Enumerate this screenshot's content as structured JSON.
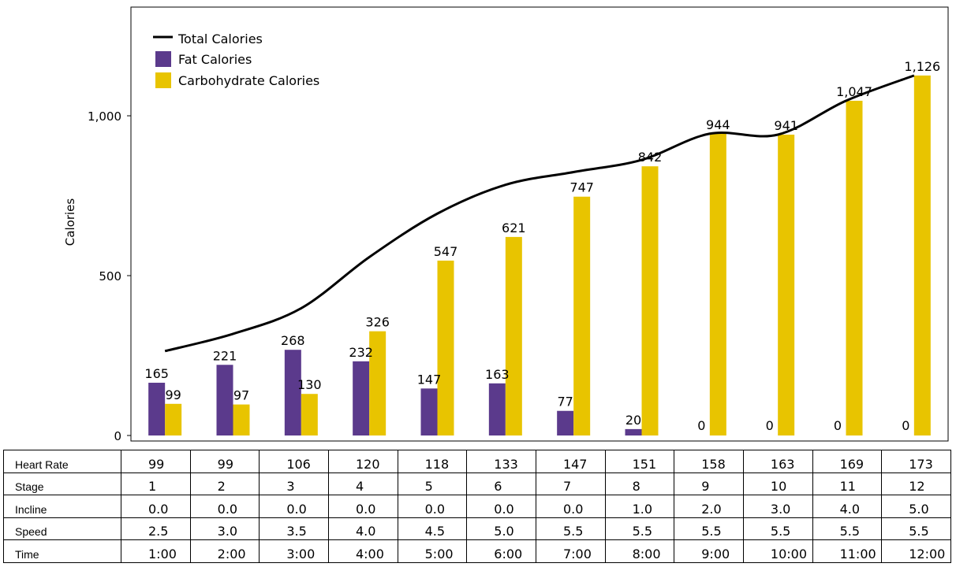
{
  "chart_data": {
    "type": "bar",
    "categories": [
      "1",
      "2",
      "3",
      "4",
      "5",
      "6",
      "7",
      "8",
      "9",
      "10",
      "11",
      "12"
    ],
    "series": [
      {
        "name": "Fat Calories",
        "type": "bar",
        "color": "#5b3a8c",
        "values": [
          165,
          221,
          268,
          232,
          147,
          163,
          77,
          20,
          0,
          0,
          0,
          0
        ],
        "labels": [
          "165",
          "221",
          "268",
          "232",
          "147",
          "163",
          "77",
          "20",
          "0",
          "0",
          "0",
          "0"
        ]
      },
      {
        "name": "Carbohydrate Calories",
        "type": "bar",
        "color": "#e8c400",
        "values": [
          99,
          97,
          130,
          326,
          547,
          621,
          747,
          842,
          944,
          941,
          1047,
          1126
        ],
        "labels": [
          "99",
          "97",
          "130",
          "326",
          "547",
          "621",
          "747",
          "842",
          "944",
          "941",
          "1,047",
          "1,126"
        ]
      },
      {
        "name": "Total Calories",
        "type": "line",
        "color": "#000000",
        "values": [
          264,
          318,
          398,
          558,
          694,
          784,
          824,
          862,
          944,
          941,
          1047,
          1126
        ]
      }
    ],
    "ylabel": "Calories",
    "ylim": [
      0,
      1340
    ],
    "yticks": [
      0,
      500,
      1000
    ],
    "ytick_labels": [
      "0",
      "500",
      "1,000"
    ],
    "legend_position": "top-left",
    "grid": false
  },
  "table": {
    "row_labels": [
      "Heart Rate",
      "Stage",
      "Incline",
      "Speed",
      "Time"
    ],
    "rows": [
      [
        "99",
        "99",
        "106",
        "120",
        "118",
        "133",
        "147",
        "151",
        "158",
        "163",
        "169",
        "173"
      ],
      [
        "1",
        "2",
        "3",
        "4",
        "5",
        "6",
        "7",
        "8",
        "9",
        "10",
        "11",
        "12"
      ],
      [
        "0.0",
        "0.0",
        "0.0",
        "0.0",
        "0.0",
        "0.0",
        "0.0",
        "1.0",
        "2.0",
        "3.0",
        "4.0",
        "5.0"
      ],
      [
        "2.5",
        "3.0",
        "3.5",
        "4.0",
        "4.5",
        "5.0",
        "5.5",
        "5.5",
        "5.5",
        "5.5",
        "5.5",
        "5.5"
      ],
      [
        "1:00",
        "2:00",
        "3:00",
        "4:00",
        "5:00",
        "6:00",
        "7:00",
        "8:00",
        "9:00",
        "10:00",
        "11:00",
        "12:00"
      ]
    ]
  }
}
